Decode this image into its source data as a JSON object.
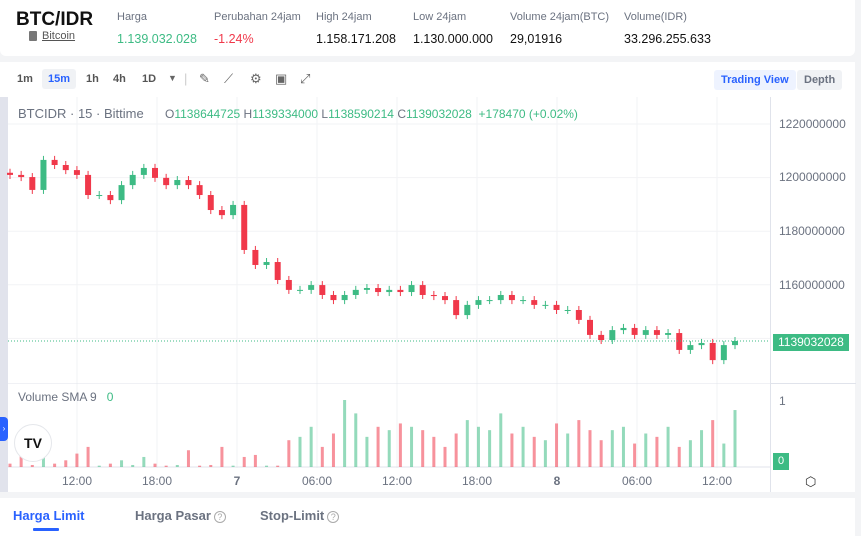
{
  "header": {
    "pair": "BTC/IDR",
    "coin_link": "Bitcoin",
    "stats": [
      {
        "label": "Harga",
        "value": "1.139.032.028",
        "tone": "up"
      },
      {
        "label": "Perubahan 24jam",
        "value": "-1.24%",
        "tone": "down"
      },
      {
        "label": "High 24jam",
        "value": "1.158.171.208"
      },
      {
        "label": "Low 24jam",
        "value": "1.130.000.000"
      },
      {
        "label": "Volume 24jam(BTC)",
        "value": "29,01916"
      },
      {
        "label": "Volume(IDR)",
        "value": "33.296.255.633"
      }
    ]
  },
  "toolbar": {
    "timeframes": [
      "1m",
      "15m",
      "1h",
      "4h",
      "1D"
    ],
    "active_timeframe": "15m",
    "icons": [
      "chevron-down-icon",
      "draw-icon",
      "indicator-icon",
      "gear-icon",
      "save-icon",
      "fullscreen-icon"
    ],
    "views": [
      "Trading View",
      "Depth"
    ],
    "active_view": "Trading View"
  },
  "legend": {
    "symbol": "BTCIDR · 15 · Bittime",
    "o": "1138644725",
    "h": "1139334000",
    "l": "1138590214",
    "c": "1139032028",
    "change": "+178470 (+0.02%)"
  },
  "volume_legend": {
    "label": "Volume SMA 9",
    "value": "0"
  },
  "colors": {
    "up": "#3dbb84",
    "down": "#f0384a",
    "accent": "#2962ff"
  },
  "chart_data": {
    "type": "candlestick",
    "price_axis_ticks": [
      "1220000000",
      "1200000000",
      "1180000000",
      "1160000000"
    ],
    "ylim": [
      1130000000,
      1225000000
    ],
    "last_price_label": "1139032028",
    "time_axis_ticks": [
      "12:00",
      "18:00",
      "7",
      "06:00",
      "12:00",
      "18:00",
      "8",
      "06:00",
      "12:00"
    ],
    "closes": [
      1201000000,
      1200200000,
      1195400000,
      1206600000,
      1204700000,
      1202800000,
      1201000000,
      1193500000,
      1193500000,
      1191600000,
      1197200000,
      1201000000,
      1203600000,
      1199900000,
      1197200000,
      1199100000,
      1197200000,
      1193500000,
      1187900000,
      1186000000,
      1189800000,
      1173000000,
      1167400000,
      1168500000,
      1161800000,
      1158100000,
      1158100000,
      1159900000,
      1156200000,
      1154300000,
      1156200000,
      1158100000,
      1158800000,
      1157300000,
      1158100000,
      1157300000,
      1159900000,
      1156200000,
      1155800000,
      1154300000,
      1148700000,
      1152500000,
      1154300000,
      1154300000,
      1156200000,
      1154300000,
      1154300000,
      1152500000,
      1152500000,
      1150600000,
      1150600000,
      1146900000,
      1141300000,
      1139400000,
      1143100000,
      1143900000,
      1141300000,
      1143100000,
      1141300000,
      1142000000,
      1135700000,
      1137500000,
      1138300000,
      1131900000,
      1137500000,
      1139032028
    ],
    "volume_axis_ticks": [
      "1",
      "0"
    ],
    "volumes": [
      0.05,
      0.35,
      0.03,
      0.15,
      0.05,
      0.1,
      0.2,
      0.3,
      0.02,
      0.05,
      0.1,
      0.03,
      0.15,
      0.05,
      0.02,
      0.03,
      0.25,
      0.02,
      0.03,
      0.3,
      0.02,
      0.15,
      0.18,
      0.02,
      0.02,
      0.4,
      0.45,
      0.6,
      0.3,
      0.5,
      1.0,
      0.8,
      0.45,
      0.6,
      0.55,
      0.65,
      0.6,
      0.55,
      0.45,
      0.3,
      0.5,
      0.7,
      0.6,
      0.55,
      0.8,
      0.5,
      0.6,
      0.45,
      0.4,
      0.65,
      0.5,
      0.7,
      0.55,
      0.4,
      0.55,
      0.6,
      0.35,
      0.5,
      0.45,
      0.6,
      0.3,
      0.4,
      0.55,
      0.7,
      0.35,
      0.85
    ],
    "grid": true
  },
  "order_tabs": [
    {
      "label": "Harga Limit",
      "help": false
    },
    {
      "label": "Harga Pasar",
      "help": true
    },
    {
      "label": "Stop-Limit",
      "help": true
    }
  ]
}
